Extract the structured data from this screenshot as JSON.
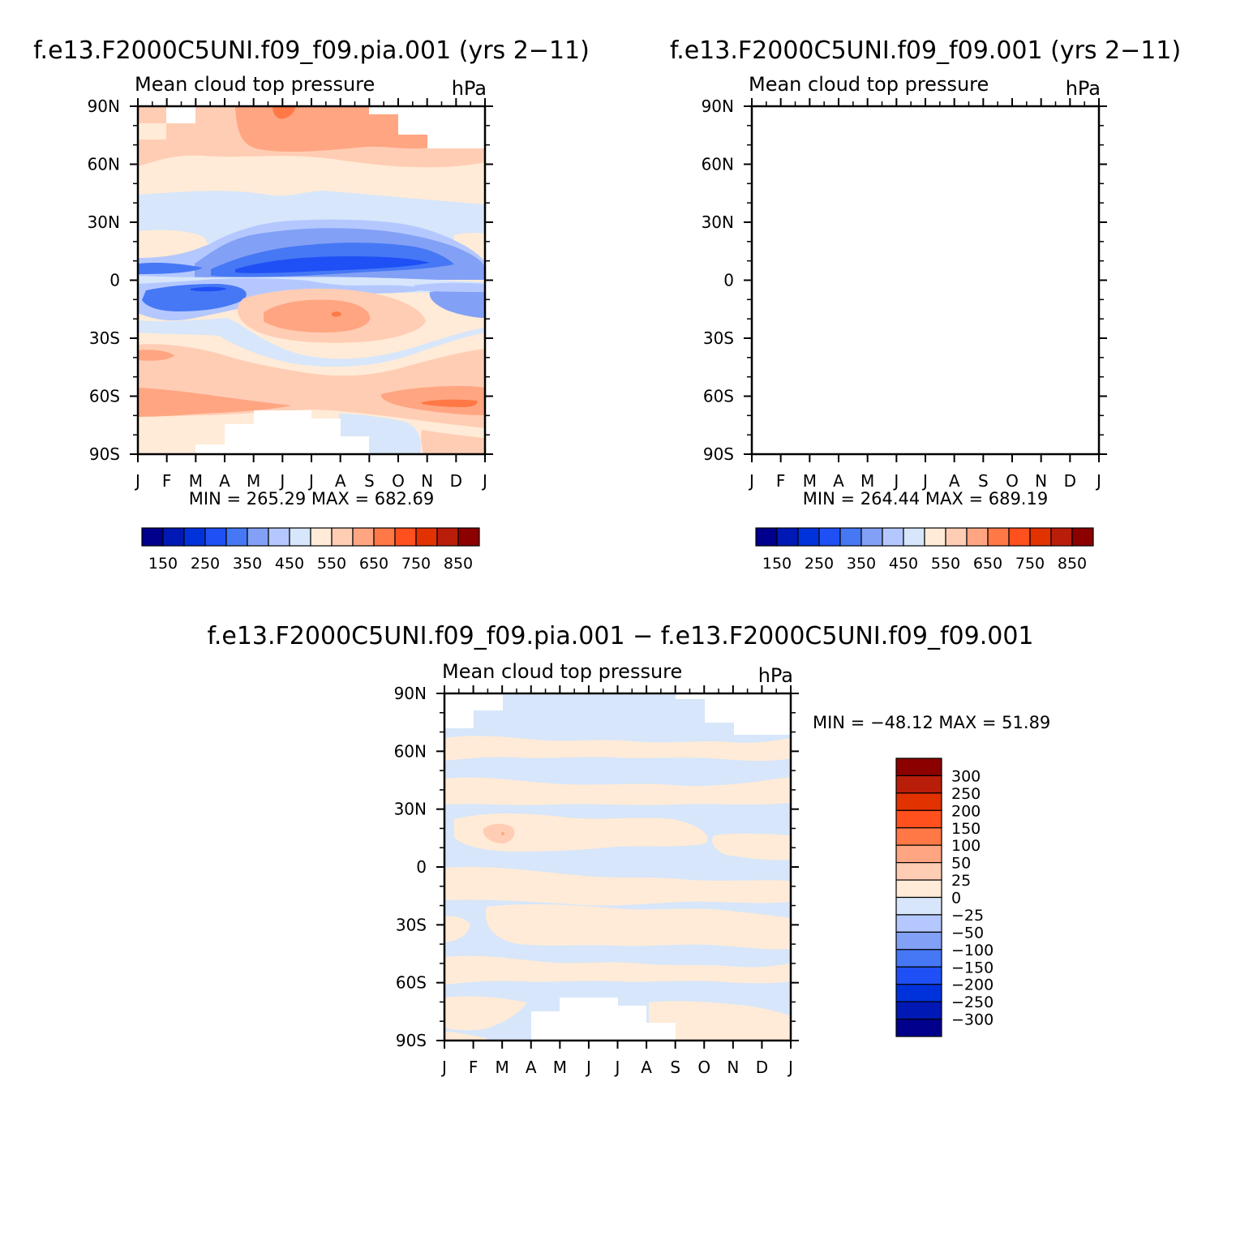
{
  "chart_data": [
    {
      "type": "heatmap",
      "title": "f.e13.F2000C5UNI.f09_f09.pia.001 (yrs 2−11)",
      "subtitle_left": "Mean cloud top pressure",
      "subtitle_right": "hPa",
      "x_ticks": [
        "J",
        "F",
        "M",
        "A",
        "M",
        "J",
        "J",
        "A",
        "S",
        "O",
        "N",
        "D",
        "J"
      ],
      "y_ticks": [
        "90N",
        "60N",
        "30N",
        "0",
        "30S",
        "60S",
        "90S"
      ],
      "stats": "MIN = 265.29 MAX = 682.69",
      "colorbar_labels": [
        "150",
        "250",
        "350",
        "450",
        "550",
        "650",
        "750",
        "850"
      ]
    },
    {
      "type": "heatmap",
      "title": "f.e13.F2000C5UNI.f09_f09.001 (yrs 2−11)",
      "subtitle_left": "Mean cloud top pressure",
      "subtitle_right": "hPa",
      "x_ticks": [
        "J",
        "F",
        "M",
        "A",
        "M",
        "J",
        "J",
        "A",
        "S",
        "O",
        "N",
        "D",
        "J"
      ],
      "y_ticks": [
        "90N",
        "60N",
        "30N",
        "0",
        "30S",
        "60S",
        "90S"
      ],
      "stats": "MIN = 264.44 MAX = 689.19",
      "colorbar_labels": [
        "150",
        "250",
        "350",
        "450",
        "550",
        "650",
        "750",
        "850"
      ]
    },
    {
      "type": "heatmap",
      "title": "f.e13.F2000C5UNI.f09_f09.pia.001 − f.e13.F2000C5UNI.f09_f09.001",
      "subtitle_left": "Mean cloud top pressure",
      "subtitle_right": "hPa",
      "x_ticks": [
        "J",
        "F",
        "M",
        "A",
        "M",
        "J",
        "J",
        "A",
        "S",
        "O",
        "N",
        "D",
        "J"
      ],
      "y_ticks": [
        "90N",
        "60N",
        "30N",
        "0",
        "30S",
        "60S",
        "90S"
      ],
      "stats": "MIN = −48.12 MAX =   51.89",
      "colorbar_labels": [
        "300",
        "250",
        "200",
        "150",
        "100",
        "50",
        "25",
        "0",
        "−25",
        "−50",
        "−100",
        "−150",
        "−200",
        "−250",
        "−300"
      ]
    }
  ],
  "colors": {
    "abs_scale": [
      "#00008c",
      "#0019b4",
      "#0032dc",
      "#1e50f5",
      "#4678f5",
      "#82a0f5",
      "#b4c8ff",
      "#d7e6fa",
      "#ffebd7",
      "#ffcdb4",
      "#ffa582",
      "#ff7846",
      "#ff501e",
      "#e13200",
      "#b91e0a",
      "#8c0000"
    ],
    "diff_scale": [
      "#8c0000",
      "#b91e0a",
      "#e13200",
      "#ff501e",
      "#ff7846",
      "#ffa582",
      "#ffcdb4",
      "#ffebd7",
      "#d7e6fa",
      "#b4c8ff",
      "#82a0f5",
      "#4678f5",
      "#1e50f5",
      "#0032dc",
      "#0019b4",
      "#00008c"
    ]
  }
}
